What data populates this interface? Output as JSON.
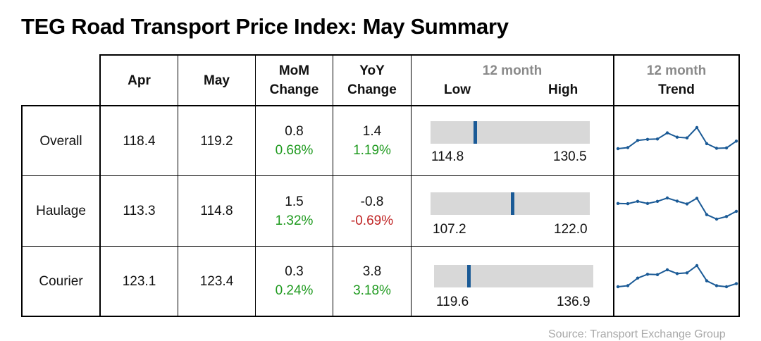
{
  "title": "TEG Road Transport Price Index: May Summary",
  "headers": {
    "apr": "Apr",
    "may": "May",
    "mom_line1": "MoM",
    "mom_line2": "Change",
    "yoy_line1": "YoY",
    "yoy_line2": "Change",
    "range_top": "12 month",
    "range_low": "Low",
    "range_high": "High",
    "trend_top": "12 month",
    "trend_bottom": "Trend"
  },
  "rows": [
    {
      "label": "Overall",
      "apr": "118.4",
      "may": "119.2",
      "mom": "0.8",
      "mom_pct": "0.68%",
      "yoy": "1.4",
      "yoy_pct": "1.19%",
      "low": "114.8",
      "high": "130.5"
    },
    {
      "label": "Haulage",
      "apr": "113.3",
      "may": "114.8",
      "mom": "1.5",
      "mom_pct": "1.32%",
      "yoy": "-0.8",
      "yoy_pct": "-0.69%",
      "low": "107.2",
      "high": "122.0"
    },
    {
      "label": "Courier",
      "apr": "123.1",
      "may": "123.4",
      "mom": "0.3",
      "mom_pct": "0.24%",
      "yoy": "3.8",
      "yoy_pct": "3.18%",
      "low": "119.6",
      "high": "136.9"
    }
  ],
  "source": "Source: Transport Exchange Group",
  "colors": {
    "positive": "#1f9a1f",
    "negative": "#c02525",
    "marker": "#1a5a96",
    "range_bar": "#d8d8d8",
    "muted": "#8a8a8a"
  },
  "chart_data": {
    "type": "table",
    "title": "TEG Road Transport Price Index: May Summary",
    "columns": [
      "Apr",
      "May",
      "MoM Change",
      "YoY Change",
      "12 month Low/High",
      "12 month Trend"
    ],
    "range_markers": [
      {
        "series": "Overall",
        "low": 114.8,
        "high": 130.5,
        "current": 119.2
      },
      {
        "series": "Haulage",
        "low": 107.2,
        "high": 122.0,
        "current": 114.8
      },
      {
        "series": "Courier",
        "low": 119.6,
        "high": 136.9,
        "current": 123.4
      }
    ],
    "trend": [
      {
        "series": "Overall",
        "values": [
          116.3,
          116.6,
          118.6,
          118.9,
          119.0,
          120.7,
          119.5,
          119.3,
          122.2,
          117.7,
          116.4,
          116.5,
          118.4
        ]
      },
      {
        "series": "Haulage",
        "values": [
          110.6,
          110.5,
          111.4,
          110.6,
          111.4,
          112.7,
          111.5,
          110.4,
          112.6,
          106.3,
          104.6,
          105.6,
          107.6
        ]
      },
      {
        "series": "Courier",
        "values": [
          120.6,
          120.9,
          123.1,
          124.2,
          124.1,
          125.5,
          124.4,
          124.6,
          126.7,
          122.3,
          120.9,
          120.6,
          121.5
        ]
      }
    ]
  }
}
